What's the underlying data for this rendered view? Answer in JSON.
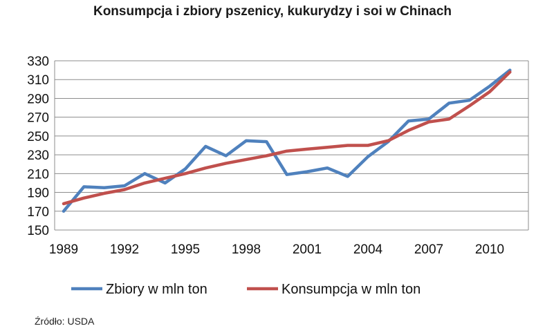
{
  "chart_data": {
    "type": "line",
    "title": "Konsumpcja i zbiory pszenicy, kukurydzy i soi w Chinach",
    "xlabel": "",
    "ylabel": "",
    "ylim": [
      150,
      330
    ],
    "xlim": [
      1989,
      2011
    ],
    "yticks": [
      "150",
      "170",
      "190",
      "210",
      "230",
      "250",
      "270",
      "290",
      "310",
      "330"
    ],
    "xticks": [
      "1989",
      "1992",
      "1995",
      "1998",
      "2001",
      "2004",
      "2007",
      "2010"
    ],
    "grid": "horizontal",
    "legend_placement": "bottom",
    "x": [
      1989,
      1990,
      1991,
      1992,
      1993,
      1994,
      1995,
      1996,
      1997,
      1998,
      1999,
      2000,
      2001,
      2002,
      2003,
      2004,
      2005,
      2006,
      2007,
      2008,
      2009,
      2010,
      2011
    ],
    "series": [
      {
        "name": "Zbiory w mln ton",
        "color": "#4f81bd",
        "values": [
          170,
          196,
          195,
          197,
          210,
          200,
          215,
          239,
          229,
          245,
          244,
          209,
          212,
          216,
          207,
          228,
          244,
          266,
          268,
          285,
          288,
          303,
          320
        ]
      },
      {
        "name": "Konsumpcja w mln ton",
        "color": "#c0504d",
        "values": [
          178,
          184,
          189,
          193,
          200,
          205,
          210,
          216,
          221,
          225,
          229,
          234,
          236,
          238,
          240,
          240,
          245,
          256,
          265,
          268,
          282,
          297,
          318
        ]
      }
    ]
  },
  "footer": {
    "source": "Źródło: USDA"
  }
}
